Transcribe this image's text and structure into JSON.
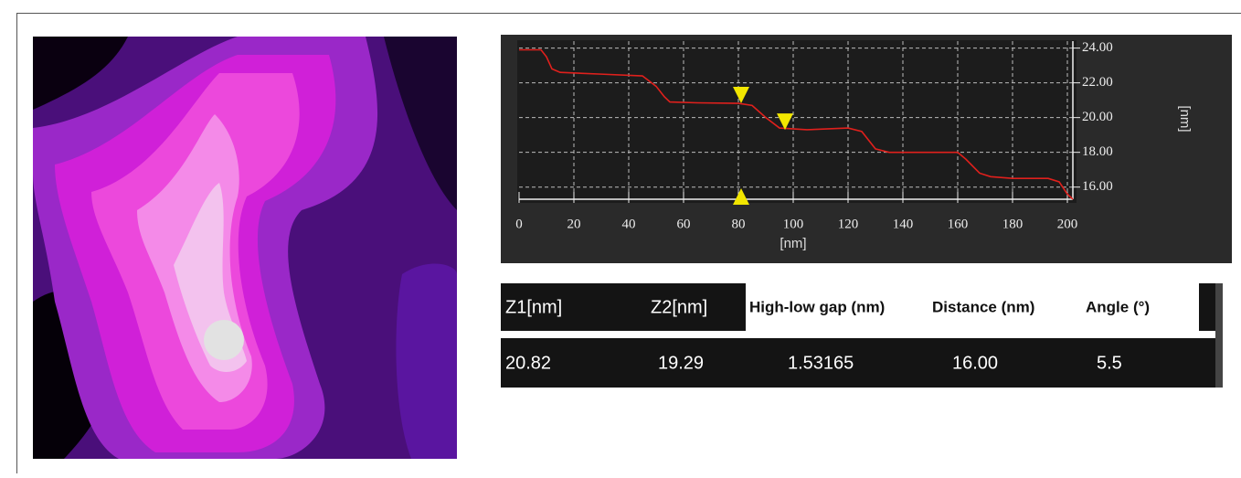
{
  "chart_data": {
    "type": "line",
    "x_label": "[nm]",
    "y_label": "[nm]",
    "x": [
      0,
      8,
      10,
      12,
      15,
      30,
      45,
      50,
      53,
      55,
      65,
      80,
      85,
      90,
      95,
      105,
      120,
      125,
      130,
      135,
      160,
      163,
      168,
      172,
      180,
      193,
      197,
      200,
      202
    ],
    "series": [
      {
        "color": "#e0201c",
        "values": [
          23.9,
          23.9,
          23.5,
          22.8,
          22.6,
          22.5,
          22.4,
          21.8,
          21.2,
          20.9,
          20.85,
          20.82,
          20.7,
          20.0,
          19.4,
          19.3,
          19.4,
          19.2,
          18.2,
          18.0,
          18.0,
          17.6,
          16.8,
          16.6,
          16.5,
          16.5,
          16.3,
          15.6,
          15.3
        ]
      }
    ],
    "markers": [
      {
        "x": 81,
        "y": 20.82,
        "color": "#f2e600"
      },
      {
        "x": 97,
        "y": 19.29,
        "color": "#f2e600"
      }
    ],
    "xlim": [
      0,
      202
    ],
    "xticks": [
      0,
      20,
      40,
      60,
      80,
      100,
      120,
      140,
      160,
      180,
      200
    ],
    "ylim": [
      15.3,
      24.4
    ],
    "yticks": [
      {
        "value": 16,
        "label": "16.00"
      },
      {
        "value": 18,
        "label": "18.00"
      },
      {
        "value": 20,
        "label": "20.00"
      },
      {
        "value": 22,
        "label": "22.00"
      },
      {
        "value": 24,
        "label": "24.00"
      }
    ],
    "grid": true
  },
  "table": {
    "header": [
      "Z1[nm]",
      "Z2[nm]",
      "High-low gap (nm)",
      "Distance (nm)",
      "Angle (°)"
    ],
    "rows": [
      [
        "20.82",
        "19.29",
        "1.53165",
        "16.00",
        "5.5"
      ]
    ]
  }
}
